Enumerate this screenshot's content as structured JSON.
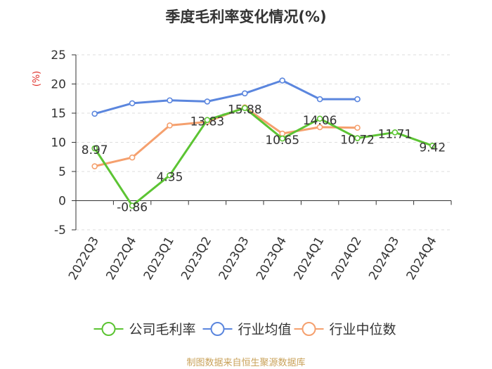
{
  "chart_data": {
    "type": "line",
    "title": "季度毛利率变化情况(%)",
    "ylabel": "(%)",
    "xlabel": "",
    "categories": [
      "2022Q3",
      "2022Q4",
      "2023Q1",
      "2023Q2",
      "2023Q3",
      "2023Q4",
      "2024Q1",
      "2024Q2",
      "2024Q3",
      "2024Q4"
    ],
    "ylim": [
      -5,
      25
    ],
    "yticks": [
      -5,
      0,
      5,
      10,
      15,
      20,
      25
    ],
    "grid": "horizontal-dashed",
    "legend_position": "bottom",
    "series": [
      {
        "name": "公司毛利率",
        "color": "#5cc433",
        "values": [
          8.97,
          -0.86,
          4.35,
          13.83,
          15.88,
          10.65,
          14.06,
          10.72,
          11.71,
          9.42
        ],
        "data_labels": [
          "8.97",
          "-0.86",
          "4.35",
          "13.83",
          "15.88",
          "10.65",
          "14.06",
          "10.72",
          "11.71",
          "9.42"
        ]
      },
      {
        "name": "行业均值",
        "color": "#5b86de",
        "values": [
          14.9,
          16.7,
          17.2,
          17.0,
          18.4,
          20.6,
          17.4,
          17.4,
          null,
          null
        ]
      },
      {
        "name": "行业中位数",
        "color": "#f5a06e",
        "values": [
          5.9,
          7.4,
          12.9,
          13.5,
          16.0,
          11.5,
          12.6,
          12.5,
          null,
          null
        ]
      }
    ]
  },
  "footer": {
    "source": "制图数据来自恒生聚源数据库"
  }
}
